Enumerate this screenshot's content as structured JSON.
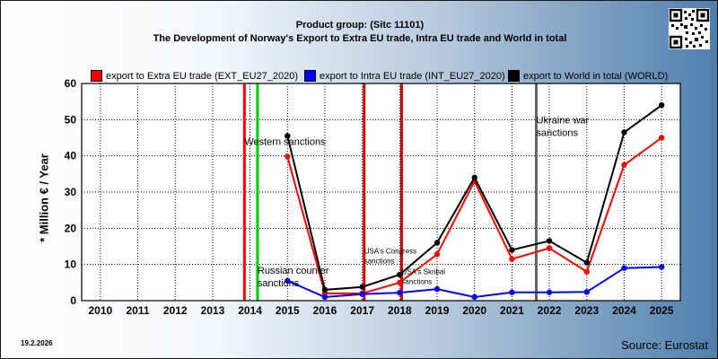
{
  "title": {
    "line1": "Product group:  (Sitc 11101)",
    "line2": "The Development of Norway's Export to Extra EU trade, Intra EU trade and World in total"
  },
  "date": "19.2.2026",
  "source": "Source: Eurostat",
  "qr_icon": "qr-code-icon",
  "chart_data": {
    "type": "line",
    "ylabel": "* Million € / Year",
    "ylim": [
      0,
      60
    ],
    "yticks": [
      0,
      10,
      20,
      30,
      40,
      50,
      60
    ],
    "x": [
      2010,
      2011,
      2012,
      2013,
      2014,
      2015,
      2016,
      2017,
      2018,
      2019,
      2020,
      2021,
      2022,
      2023,
      2024,
      2025
    ],
    "grid": true,
    "legend_position": "top",
    "series": [
      {
        "name": "export to Extra EU trade (EXT_EU27_2020)",
        "color": "#ff0000",
        "values": [
          null,
          null,
          null,
          null,
          null,
          39.8,
          2.0,
          2.0,
          5.0,
          12.8,
          33.0,
          11.5,
          14.5,
          8.0,
          37.5,
          45.0
        ]
      },
      {
        "name": "export to Intra EU trade (INT_EU27_2020)",
        "color": "#0000ff",
        "values": [
          null,
          null,
          null,
          null,
          null,
          5.5,
          1.0,
          1.8,
          2.2,
          3.2,
          1.0,
          2.3,
          2.3,
          2.4,
          9.0,
          9.3
        ]
      },
      {
        "name": "export to World in total (WORLD)",
        "color": "#000000",
        "values": [
          null,
          null,
          null,
          null,
          null,
          45.5,
          3.0,
          3.8,
          7.2,
          16.0,
          34.0,
          14.0,
          16.5,
          10.5,
          46.5,
          54.0
        ]
      }
    ],
    "events": [
      {
        "x": 2013.85,
        "color": "#ff0000",
        "label": [
          "Western sanctions"
        ],
        "label_x": 2013.85,
        "label_y": 43
      },
      {
        "x": 2014.2,
        "color": "#00cc00",
        "label": [
          "Russian counter",
          "sanctions"
        ],
        "label_x": 2014.2,
        "label_y": 7.5
      },
      {
        "x": 2017.05,
        "color": "#dd0000",
        "label": [
          "USA's Congress",
          "sanctions"
        ],
        "label_x": 2017.05,
        "label_y": 13
      },
      {
        "x": 2018.05,
        "color": "#cc0000",
        "label": [
          "USA's Skribal",
          "sanctions"
        ],
        "label_x": 2018.05,
        "label_y": 7.3
      },
      {
        "x": 2021.65,
        "color": "#666666",
        "label": [
          "Ukraine war",
          "sanctions"
        ],
        "label_x": 2021.65,
        "label_y": 49
      }
    ]
  }
}
